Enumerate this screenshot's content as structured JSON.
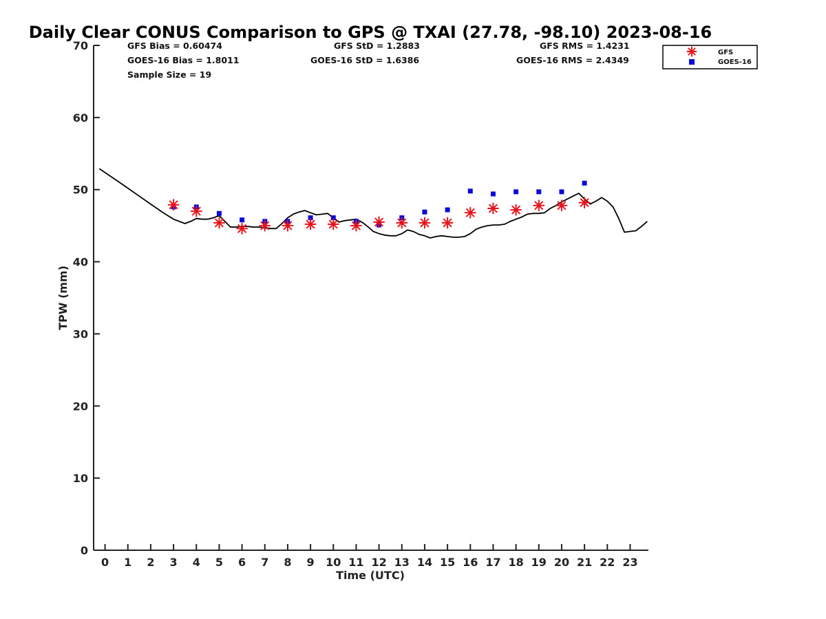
{
  "chart_data": {
    "type": "line+scatter",
    "title": "Daily Clear CONUS Comparison to GPS @ TXAI (27.78, -98.10) 2023-08-16",
    "xlabel": "Time (UTC)",
    "ylabel": "TPW (mm)",
    "xlim": [
      -0.5,
      23.8
    ],
    "ylim": [
      0,
      70
    ],
    "xticks": [
      "0",
      "1",
      "2",
      "3",
      "4",
      "5",
      "6",
      "7",
      "8",
      "9",
      "10",
      "11",
      "12",
      "13",
      "14",
      "15",
      "16",
      "17",
      "18",
      "19",
      "20",
      "21",
      "22",
      "23"
    ],
    "yticks": [
      "0",
      "10",
      "20",
      "30",
      "40",
      "50",
      "60",
      "70"
    ],
    "stats": {
      "gfs_bias": "GFS Bias = 0.60474",
      "goes_bias": "GOES-16 Bias = 1.8011",
      "sample_size": "Sample Size = 19",
      "gfs_std": "GFS StD = 1.2883",
      "goes_std": "GOES-16 StD = 1.6386",
      "gfs_rms": "GFS RMS = 1.4231",
      "goes_rms": "GOES-16 RMS = 2.4349"
    },
    "legend": {
      "position": "top-right",
      "entries": [
        "GFS",
        "GOES-16"
      ]
    },
    "series": [
      {
        "name": "GPS",
        "style": "line",
        "color": "#000000",
        "x": [
          -0.25,
          0.5,
          1.0,
          1.5,
          2.0,
          2.5,
          2.75,
          3.0,
          3.25,
          3.5,
          3.75,
          4.0,
          4.25,
          4.5,
          4.75,
          5.0,
          5.25,
          5.5,
          5.75,
          6.0,
          6.25,
          6.5,
          6.75,
          7.0,
          7.25,
          7.5,
          7.75,
          8.0,
          8.25,
          8.5,
          8.75,
          9.0,
          9.25,
          9.5,
          9.75,
          10.0,
          10.25,
          10.5,
          10.75,
          11.0,
          11.25,
          11.5,
          11.75,
          12.0,
          12.25,
          12.5,
          12.75,
          13.0,
          13.25,
          13.5,
          13.75,
          14.0,
          14.25,
          14.5,
          14.75,
          15.0,
          15.25,
          15.5,
          15.75,
          16.0,
          16.25,
          16.5,
          16.75,
          17.0,
          17.25,
          17.5,
          17.75,
          18.0,
          18.25,
          18.5,
          18.75,
          19.0,
          19.25,
          19.5,
          19.75,
          20.0,
          20.25,
          20.5,
          20.75,
          21.0,
          21.25,
          21.5,
          21.75,
          22.0,
          22.25,
          22.5,
          22.75,
          23.0,
          23.25,
          23.5,
          23.75
        ],
        "values": [
          52.9,
          51.3,
          50.2,
          49.1,
          48.0,
          46.9,
          46.4,
          45.9,
          45.6,
          45.3,
          45.6,
          46.0,
          45.9,
          45.9,
          46.1,
          46.4,
          45.6,
          44.8,
          44.8,
          44.9,
          44.9,
          44.8,
          44.8,
          44.7,
          44.6,
          44.6,
          45.3,
          46.1,
          46.6,
          46.9,
          47.1,
          46.8,
          46.5,
          46.6,
          46.7,
          46.1,
          45.5,
          45.7,
          45.8,
          45.9,
          45.5,
          44.9,
          44.2,
          43.9,
          43.7,
          43.6,
          43.6,
          43.9,
          44.4,
          44.2,
          43.8,
          43.6,
          43.3,
          43.5,
          43.6,
          43.5,
          43.4,
          43.4,
          43.5,
          43.9,
          44.5,
          44.8,
          45.0,
          45.1,
          45.1,
          45.2,
          45.6,
          45.9,
          46.2,
          46.6,
          46.7,
          46.7,
          46.8,
          47.4,
          47.8,
          48.3,
          48.7,
          49.1,
          49.5,
          48.7,
          48.0,
          48.4,
          48.9,
          48.4,
          47.6,
          46.0,
          44.1,
          44.2,
          44.3,
          44.9,
          45.6
        ]
      },
      {
        "name": "GFS",
        "style": "star",
        "color": "#e8131b",
        "x": [
          3,
          4,
          5,
          6,
          7,
          8,
          9,
          10,
          11,
          12,
          13,
          14,
          15,
          16,
          17,
          18,
          19,
          20,
          21
        ],
        "values": [
          47.9,
          47.0,
          45.4,
          44.6,
          45.0,
          45.0,
          45.2,
          45.2,
          45.0,
          45.5,
          45.4,
          45.4,
          45.4,
          46.8,
          47.4,
          47.2,
          47.8,
          47.8,
          48.2
        ]
      },
      {
        "name": "GOES-16",
        "style": "square",
        "color": "#0b0bd9",
        "x": [
          3,
          4,
          5,
          6,
          7,
          8,
          9,
          10,
          11,
          12,
          13,
          14,
          15,
          16,
          17,
          18,
          19,
          20,
          21
        ],
        "values": [
          47.6,
          47.6,
          46.7,
          45.8,
          45.6,
          45.6,
          46.1,
          46.1,
          45.6,
          45.1,
          46.1,
          46.9,
          47.2,
          49.8,
          49.4,
          49.7,
          49.7,
          49.7,
          50.9
        ]
      }
    ]
  }
}
